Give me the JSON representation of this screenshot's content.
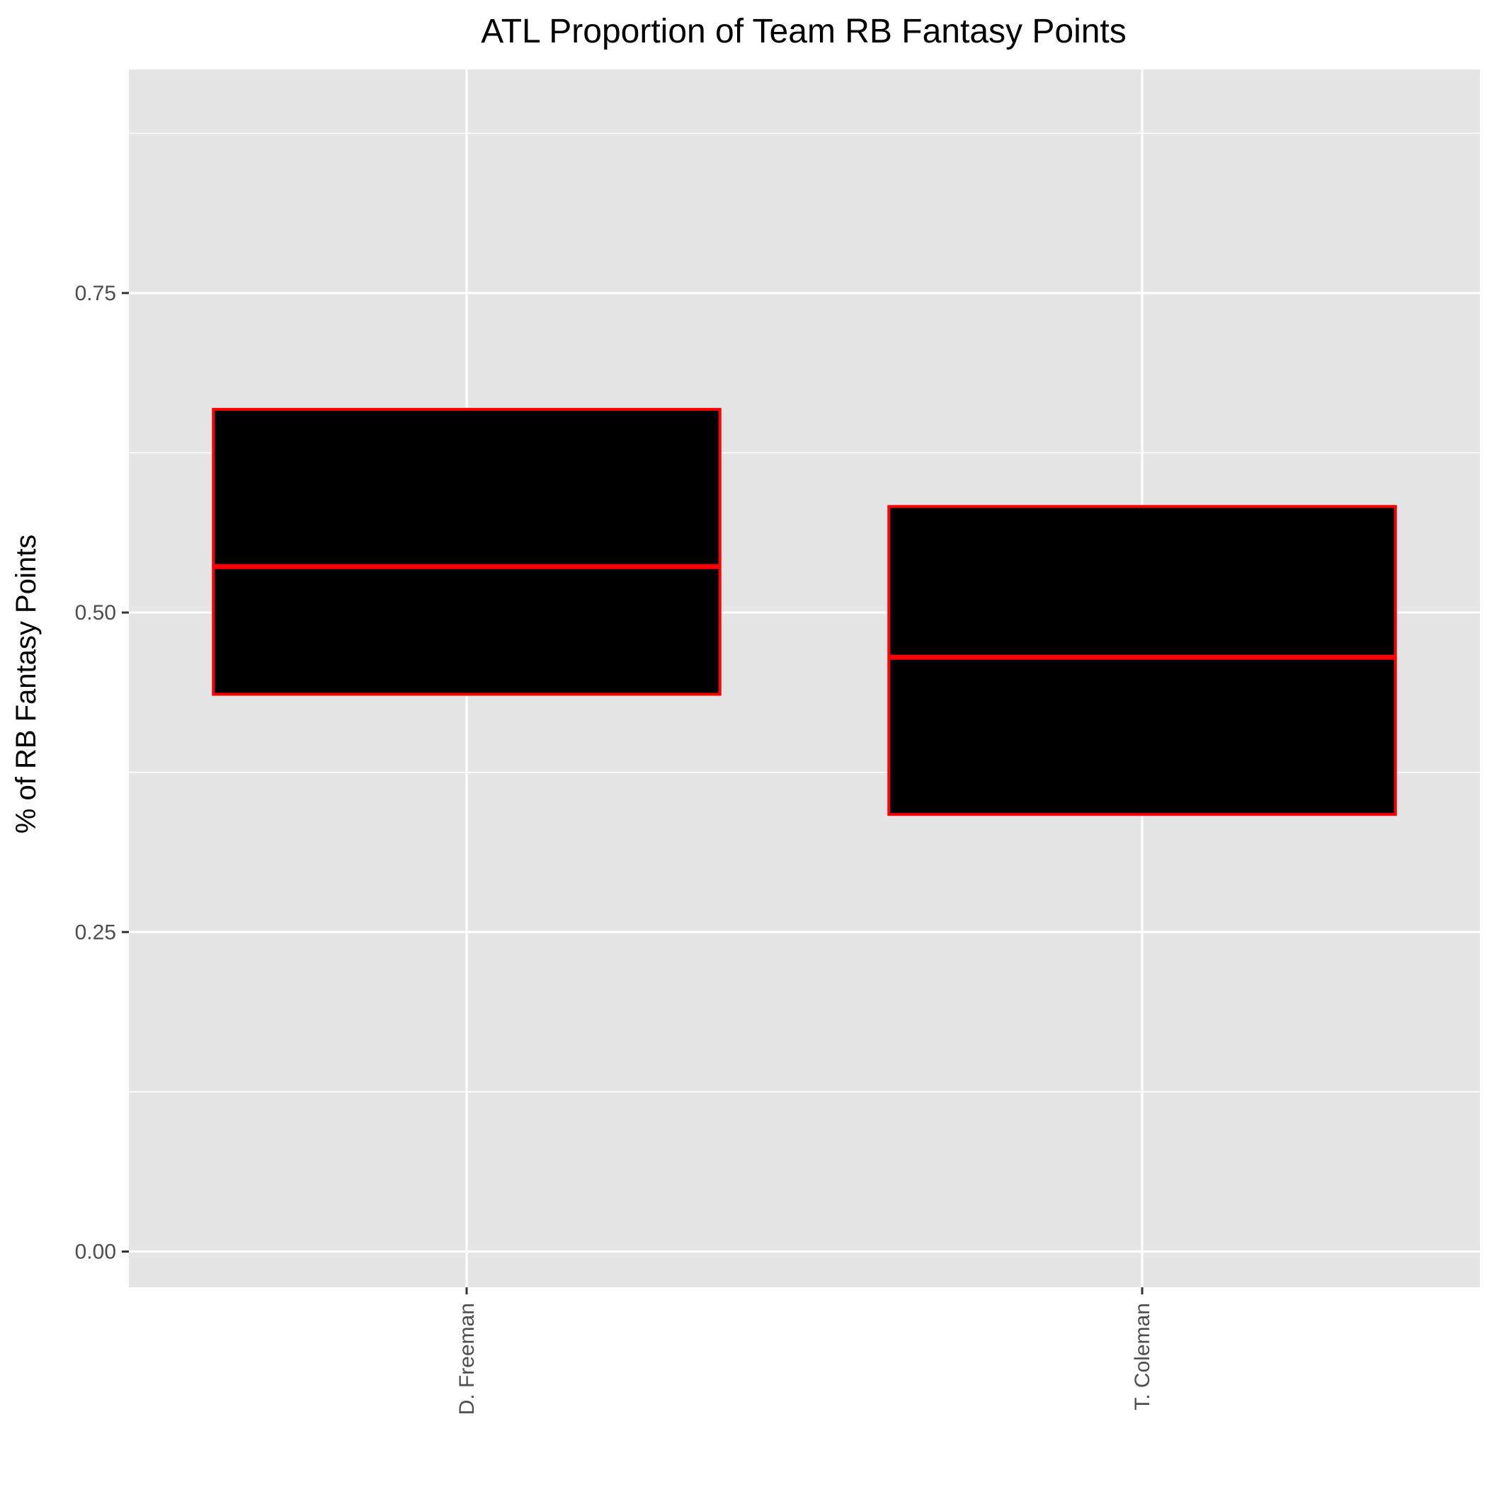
{
  "chart_data": {
    "type": "boxplot",
    "title": "ATL Proportion of Team RB Fantasy Points",
    "xlabel": "",
    "ylabel": "% of RB Fantasy Points",
    "categories": [
      "D. Freeman",
      "T. Coleman"
    ],
    "boxes": [
      {
        "category": "D. Freeman",
        "q1": 0.436,
        "median": 0.536,
        "q3": 0.659
      },
      {
        "category": "T. Coleman",
        "q1": 0.342,
        "median": 0.465,
        "q3": 0.583
      }
    ],
    "ylim": [
      -0.028,
      0.925
    ],
    "yticks": [
      0,
      0.25,
      0.5,
      0.75
    ],
    "ytick_labels": [
      "0.00",
      "0.25",
      "0.50",
      "0.75"
    ],
    "grid": true,
    "colors": {
      "panel_background": "#e5e5e5",
      "grid": "#ffffff",
      "box_fill": "#000000",
      "box_outline": "#ff0000",
      "tick": "#333333"
    }
  }
}
